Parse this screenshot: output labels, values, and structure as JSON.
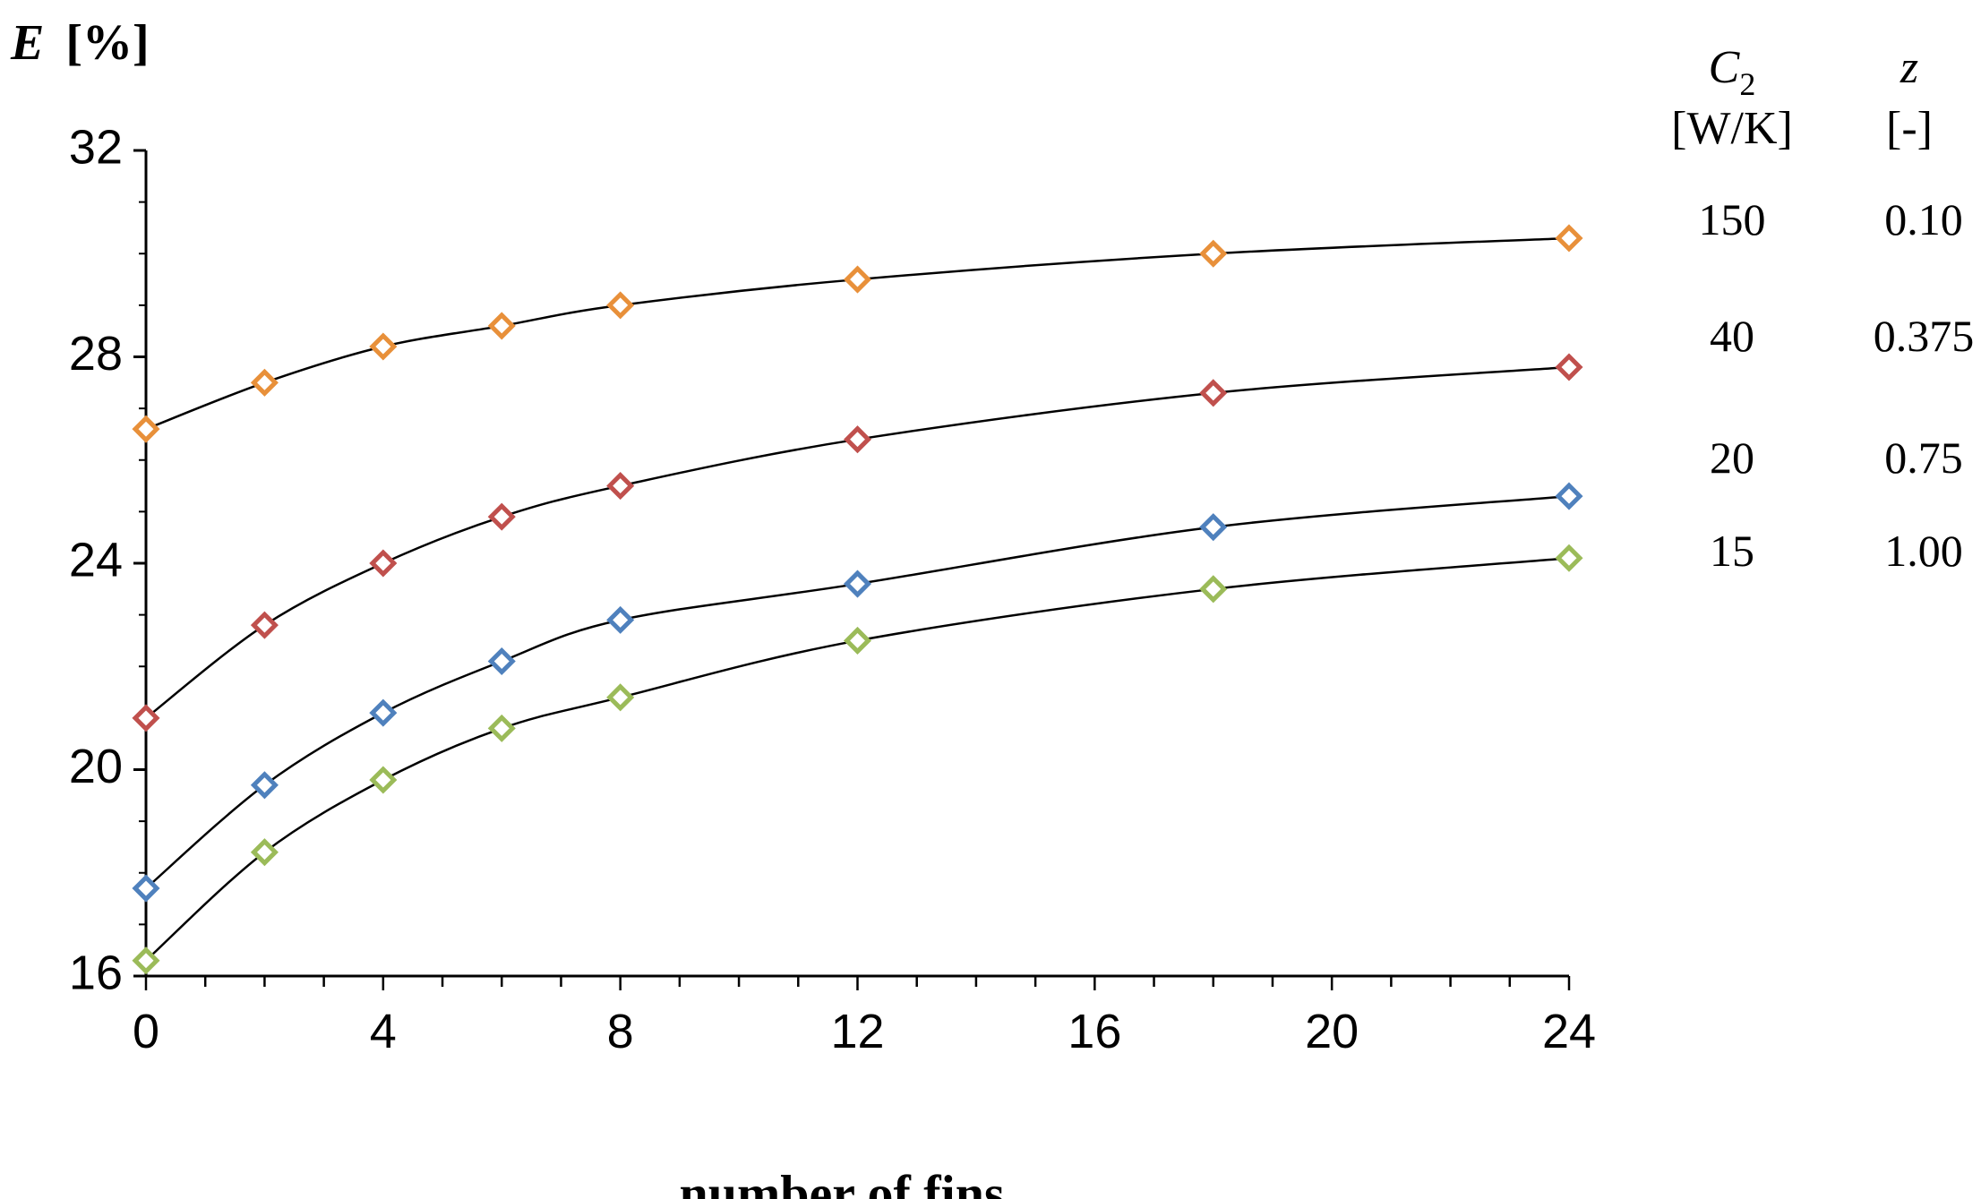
{
  "chart_data": {
    "type": "line",
    "ylabel_symbol": "E",
    "ylabel_unit": "[%]",
    "xlabel": "number of fins",
    "xlim": [
      0,
      24
    ],
    "ylim": [
      16,
      32
    ],
    "x_ticks": [
      0,
      4,
      8,
      12,
      16,
      20,
      24
    ],
    "y_ticks": [
      16,
      20,
      24,
      28,
      32
    ],
    "x_minor_step": 1,
    "grid": false,
    "x": [
      0,
      2,
      4,
      6,
      8,
      12,
      18,
      24
    ],
    "series": [
      {
        "C2": "150",
        "z": "0.10",
        "color": "#e8903a",
        "values": [
          26.6,
          27.5,
          28.2,
          28.6,
          29.0,
          29.5,
          30.0,
          30.3
        ]
      },
      {
        "C2": "40",
        "z": "0.375",
        "color": "#c0504d",
        "values": [
          21.0,
          22.8,
          24.0,
          24.9,
          25.5,
          26.4,
          27.3,
          27.8
        ]
      },
      {
        "C2": "20",
        "z": "0.75",
        "color": "#4f81bd",
        "values": [
          17.7,
          19.7,
          21.1,
          22.1,
          22.9,
          23.6,
          24.7,
          25.3
        ]
      },
      {
        "C2": "15",
        "z": "1.00",
        "color": "#9bbb59",
        "values": [
          16.3,
          18.4,
          19.8,
          20.8,
          21.4,
          22.5,
          23.5,
          24.1
        ]
      }
    ],
    "legend": {
      "placement": "right",
      "col1_symbol": "C",
      "col1_subscript": "2",
      "col1_unit": "[W/K]",
      "col2_symbol": "z",
      "col2_unit": "[-]"
    }
  }
}
